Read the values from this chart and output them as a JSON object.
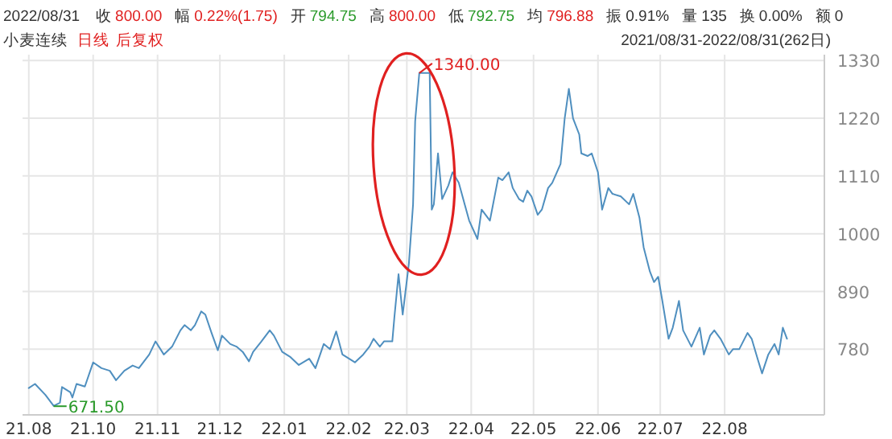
{
  "chart_data": {
    "type": "line",
    "title": "2022/08/31",
    "subtitle": "小麦连续",
    "annotations": [
      "收",
      "800.00",
      "幅",
      "0.22%(1.75)",
      "开",
      "794.75",
      "高",
      "800.00",
      "低",
      "792.75",
      "均",
      "796.88",
      "振",
      "0.91%",
      "量",
      "135",
      "换",
      "0.00%",
      "额",
      "0",
      "日线",
      "后复权",
      "2021/08/31-2022/08/31(262日)",
      {
        "text": "1340.00",
        "x": "2022-03-07",
        "y": 1306
      },
      {
        "text": "671.50",
        "x": "2021-09-12",
        "y": 671.5
      }
    ],
    "x": [
      "2021-08-31",
      "2021-09-03",
      "2021-09-08",
      "2021-09-12",
      "2021-09-15",
      "2021-09-16",
      "2021-09-20",
      "2021-09-21",
      "2021-09-23",
      "2021-09-27",
      "2021-10-01",
      "2021-10-05",
      "2021-10-09",
      "2021-10-12",
      "2021-10-16",
      "2021-10-20",
      "2021-10-23",
      "2021-10-28",
      "2021-10-31",
      "2021-11-04",
      "2021-11-08",
      "2021-11-12",
      "2021-11-14",
      "2021-11-17",
      "2021-11-19",
      "2021-11-22",
      "2021-11-24",
      "2021-11-27",
      "2021-11-30",
      "2021-12-02",
      "2021-12-06",
      "2021-12-09",
      "2021-12-12",
      "2021-12-15",
      "2021-12-17",
      "2021-12-21",
      "2021-12-25",
      "2021-12-27",
      "2021-12-31",
      "2022-01-04",
      "2022-01-08",
      "2022-01-13",
      "2022-01-16",
      "2022-01-20",
      "2022-01-23",
      "2022-01-26",
      "2022-01-29",
      "2022-02-02",
      "2022-02-04",
      "2022-02-08",
      "2022-02-11",
      "2022-02-13",
      "2022-02-16",
      "2022-02-18",
      "2022-02-22",
      "2022-02-23",
      "2022-02-25",
      "2022-02-27",
      "2022-03-02",
      "2022-03-04",
      "2022-03-05",
      "2022-03-07",
      "2022-03-12",
      "2022-03-13",
      "2022-03-14",
      "2022-03-16",
      "2022-03-18",
      "2022-03-21",
      "2022-03-23",
      "2022-03-26",
      "2022-03-31",
      "2022-04-04",
      "2022-04-06",
      "2022-04-10",
      "2022-04-14",
      "2022-04-16",
      "2022-04-19",
      "2022-04-21",
      "2022-04-24",
      "2022-04-26",
      "2022-04-28",
      "2022-04-30",
      "2022-05-03",
      "2022-05-05",
      "2022-05-08",
      "2022-05-10",
      "2022-05-14",
      "2022-05-16",
      "2022-05-18",
      "2022-05-20",
      "2022-05-23",
      "2022-05-24",
      "2022-05-27",
      "2022-05-29",
      "2022-06-01",
      "2022-06-03",
      "2022-06-06",
      "2022-06-08",
      "2022-06-12",
      "2022-06-16",
      "2022-06-18",
      "2022-06-21",
      "2022-06-23",
      "2022-06-26",
      "2022-06-28",
      "2022-06-30",
      "2022-07-02",
      "2022-07-05",
      "2022-07-07",
      "2022-07-10",
      "2022-07-12",
      "2022-07-16",
      "2022-07-20",
      "2022-07-22",
      "2022-07-25",
      "2022-07-27",
      "2022-07-30",
      "2022-08-03",
      "2022-08-05",
      "2022-08-08",
      "2022-08-12",
      "2022-08-14",
      "2022-08-17",
      "2022-08-19",
      "2022-08-22",
      "2022-08-25",
      "2022-08-27",
      "2022-08-29",
      "2022-08-31"
    ],
    "series": [
      {
        "color": "#4f8fbf",
        "values": [
          706,
          714,
          693,
          672,
          678,
          708,
          698,
          688,
          714,
          709,
          755,
          744,
          739,
          721,
          739,
          749,
          744,
          770,
          795,
          770,
          785,
          816,
          826,
          816,
          826,
          852,
          846,
          811,
          778,
          806,
          790,
          785,
          775,
          757,
          775,
          795,
          816,
          806,
          775,
          765,
          750,
          762,
          744,
          790,
          780,
          814,
          770,
          760,
          755,
          770,
          785,
          800,
          785,
          795,
          795,
          841,
          923,
          846,
          944,
          1056,
          1214,
          1306,
          1306,
          1046,
          1056,
          1153,
          1066,
          1092,
          1117,
          1097,
          1025,
          990,
          1046,
          1025,
          1107,
          1102,
          1117,
          1087,
          1066,
          1061,
          1082,
          1071,
          1036,
          1046,
          1087,
          1097,
          1133,
          1220,
          1276,
          1220,
          1189,
          1153,
          1148,
          1153,
          1117,
          1046,
          1087,
          1076,
          1071,
          1056,
          1076,
          1030,
          974,
          928,
          908,
          918,
          872,
          800,
          821,
          872,
          816,
          785,
          821,
          770,
          806,
          816,
          800,
          770,
          780,
          780,
          811,
          800,
          760,
          734,
          770,
          790,
          770,
          821,
          800
        ]
      }
    ],
    "xlim": [
      "2021-08-28",
      "2022-09-18"
    ],
    "ylim": [
      655,
      1341
    ],
    "xticks": [
      {
        "value": "2021-08-31",
        "label": "21.08"
      },
      {
        "value": "2021-10-01",
        "label": "21.10"
      },
      {
        "value": "2021-11-01",
        "label": "21.11"
      },
      {
        "value": "2021-12-01",
        "label": "21.12"
      },
      {
        "value": "2022-01-01",
        "label": "22.01"
      },
      {
        "value": "2022-02-01",
        "label": "22.02"
      },
      {
        "value": "2022-03-01",
        "label": "22.03"
      },
      {
        "value": "2022-04-01",
        "label": "22.04"
      },
      {
        "value": "2022-05-01",
        "label": "22.05"
      },
      {
        "value": "2022-06-01",
        "label": "22.06"
      },
      {
        "value": "2022-07-01",
        "label": "22.07"
      },
      {
        "value": "2022-08-01",
        "label": "22.08"
      }
    ],
    "yticks": [
      780,
      890,
      1000,
      1110,
      1220,
      1330
    ],
    "grid": true
  }
}
